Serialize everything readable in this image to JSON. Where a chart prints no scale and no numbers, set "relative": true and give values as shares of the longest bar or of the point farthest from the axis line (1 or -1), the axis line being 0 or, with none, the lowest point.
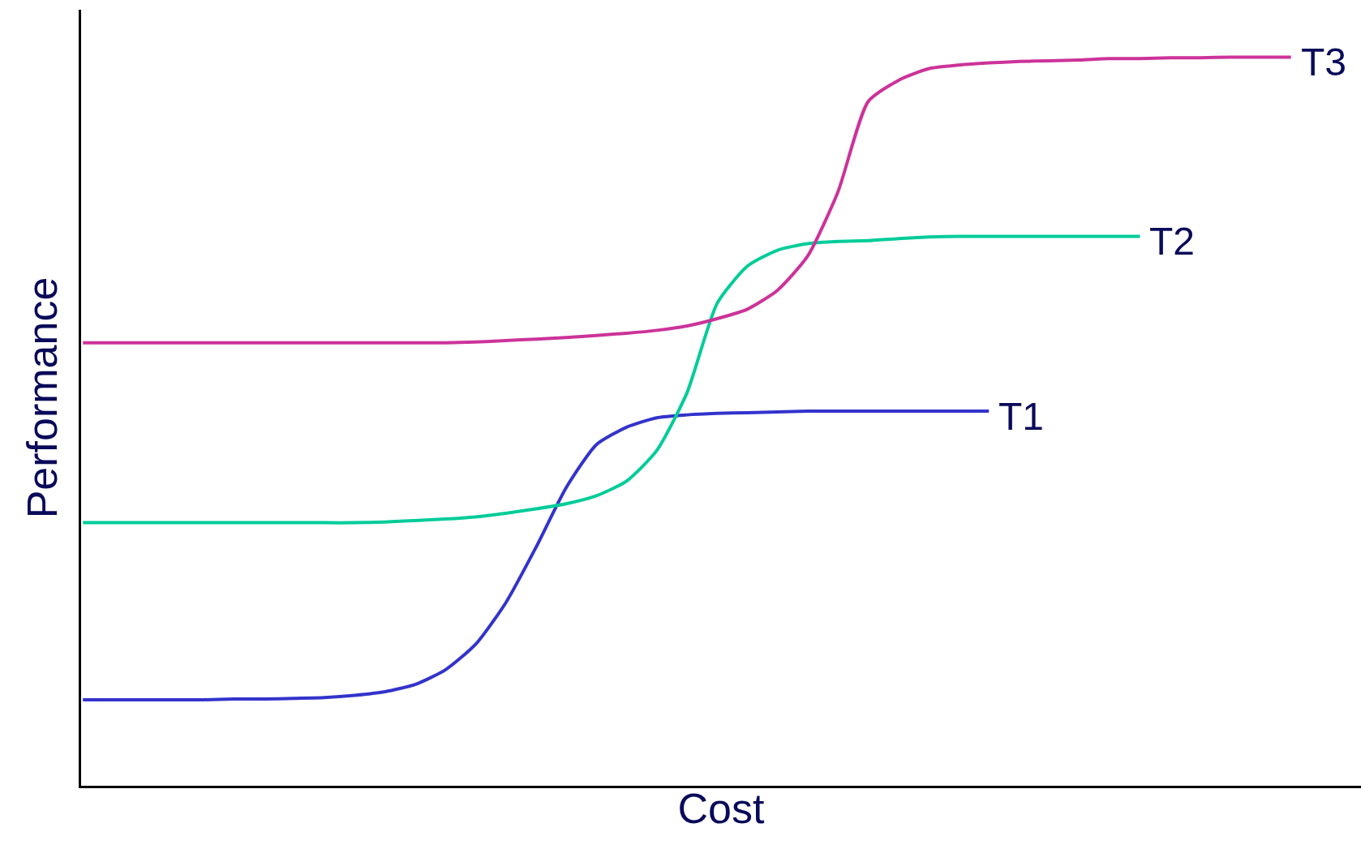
{
  "chart_data": {
    "type": "line",
    "relative": true,
    "xlabel": "Cost",
    "ylabel": "Performance",
    "legend": false,
    "marker": "none",
    "line_style": "solid",
    "categories": [
      null,
      null,
      null,
      null,
      null,
      null,
      null,
      null,
      null,
      null,
      null,
      null,
      null,
      null,
      null,
      null,
      null,
      null,
      null,
      null,
      null,
      null,
      null,
      null,
      null,
      null,
      null,
      null,
      null,
      null,
      null,
      null,
      null,
      null,
      null,
      null,
      null,
      null,
      null,
      null,
      null
    ],
    "series": [
      {
        "name": "T1",
        "color": "#3333cc",
        "values": [
          0.118,
          0.118,
          0.118,
          0.118,
          0.118,
          0.119,
          0.119,
          0.12,
          0.121,
          0.124,
          0.129,
          0.139,
          0.159,
          0.194,
          0.251,
          0.327,
          0.409,
          0.468,
          0.492,
          0.505,
          0.509,
          0.511,
          0.512,
          0.513,
          0.514,
          0.514,
          0.514,
          0.514,
          0.514,
          0.514,
          0.514,
          null,
          null,
          null,
          null,
          null,
          null,
          null,
          null,
          null,
          null
        ]
      },
      {
        "name": "T2",
        "color": "#00cc99",
        "values": [
          0.361,
          0.361,
          0.361,
          0.361,
          0.361,
          0.361,
          0.361,
          0.361,
          0.361,
          0.361,
          0.362,
          0.364,
          0.366,
          0.369,
          0.374,
          0.38,
          0.387,
          0.398,
          0.418,
          0.46,
          0.539,
          0.662,
          0.713,
          0.735,
          0.744,
          0.747,
          0.748,
          0.751,
          0.753,
          0.754,
          0.754,
          0.754,
          0.754,
          0.754,
          0.754,
          0.754,
          null,
          null,
          null,
          null,
          null
        ]
      },
      {
        "name": "T3",
        "color": "#cc3399",
        "values": [
          0.608,
          0.608,
          0.608,
          0.608,
          0.608,
          0.608,
          0.608,
          0.608,
          0.608,
          0.608,
          0.608,
          0.608,
          0.608,
          0.609,
          0.611,
          0.613,
          0.615,
          0.618,
          0.621,
          0.625,
          0.631,
          0.641,
          0.654,
          0.68,
          0.727,
          0.815,
          0.939,
          0.968,
          0.984,
          0.989,
          0.992,
          0.994,
          0.995,
          0.996,
          0.998,
          0.998,
          0.999,
          0.999,
          1,
          1,
          1
        ]
      }
    ]
  }
}
